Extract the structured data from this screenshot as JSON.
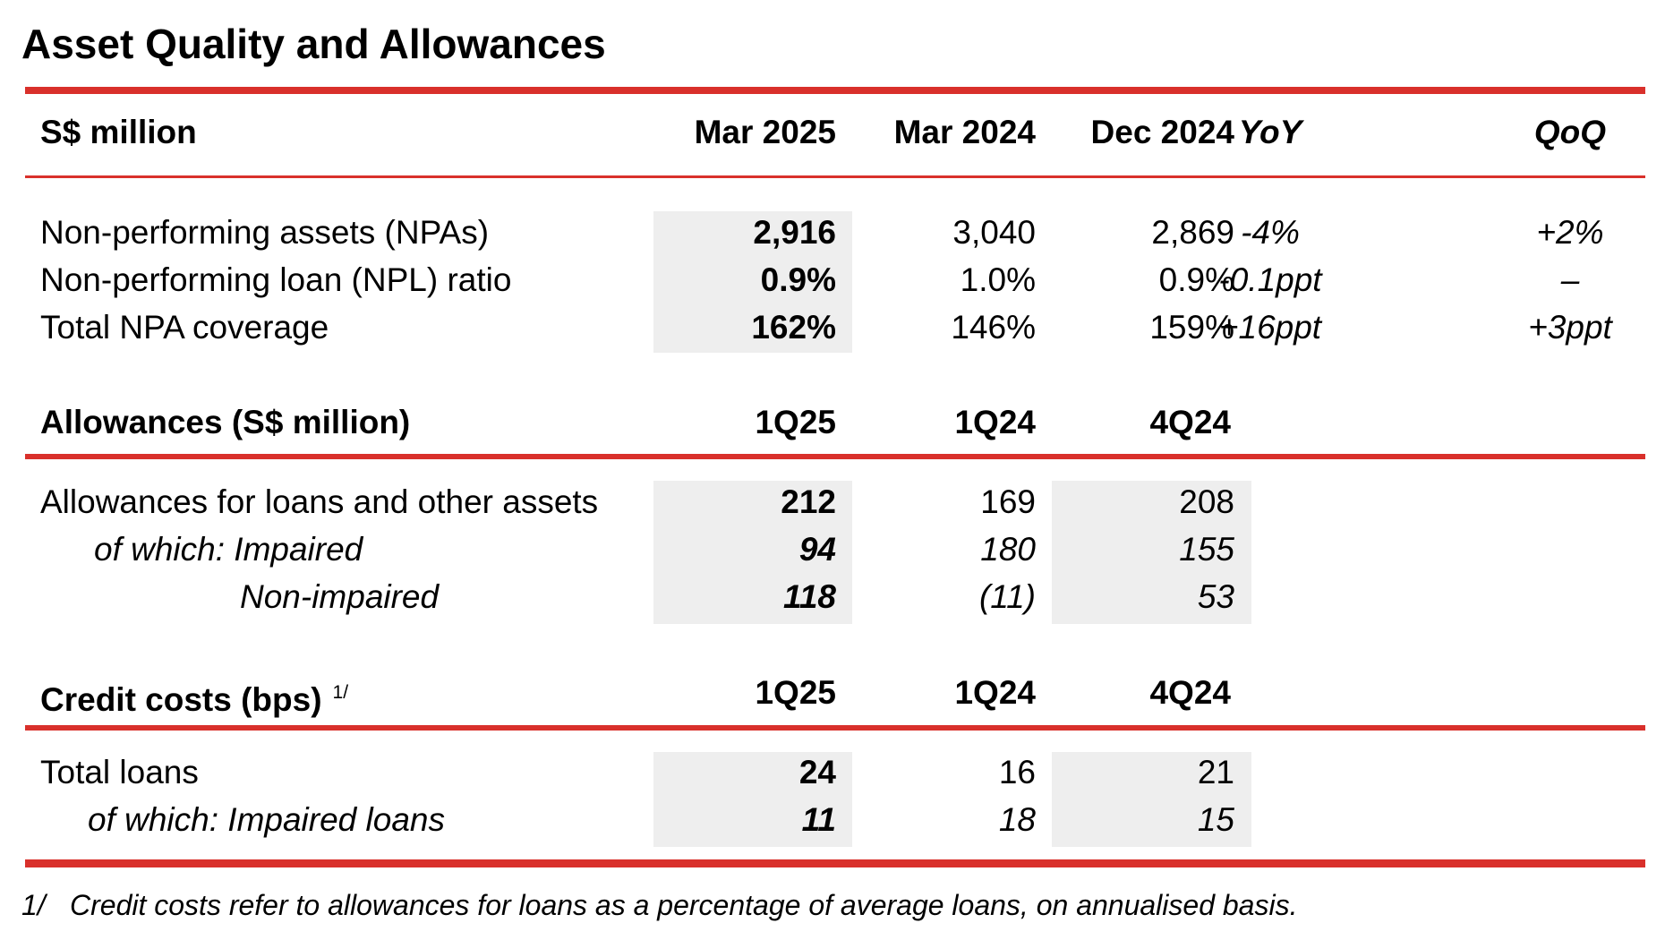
{
  "title": "Asset Quality and Allowances",
  "accent_color": "#d9302b",
  "shade_color": "#eeeeee",
  "npa_header": {
    "label": "S$ million",
    "cols": [
      "Mar 2025",
      "Mar 2024",
      "Dec 2024",
      "YoY",
      "QoQ"
    ]
  },
  "npa_rows": [
    {
      "label": "Non-performing assets (NPAs)",
      "mar2025": "2,916",
      "mar2024": "3,040",
      "dec2024": "2,869",
      "yoy": "-4%",
      "qoq": "+2%"
    },
    {
      "label": "Non-performing loan (NPL) ratio",
      "mar2025": "0.9%",
      "mar2024": "1.0%",
      "dec2024": "0.9%",
      "yoy": "-0.1ppt",
      "qoq": "–"
    },
    {
      "label": "Total NPA coverage",
      "mar2025": "162%",
      "mar2024": "146%",
      "dec2024": "159%",
      "yoy": "+16ppt",
      "qoq": "+3ppt"
    }
  ],
  "allow_header": {
    "label": "Allowances (S$ million)",
    "cols": [
      "1Q25",
      "1Q24",
      "4Q24"
    ]
  },
  "allow_rows": [
    {
      "label": "Allowances for loans and other assets",
      "q125": "212",
      "q124": "169",
      "q424": "208"
    },
    {
      "label": "of which: Impaired",
      "q125": "94",
      "q124": "180",
      "q424": "155"
    },
    {
      "label": "Non-impaired",
      "q125": "118",
      "q124": "(11)",
      "q424": "53"
    }
  ],
  "credit_header": {
    "label": "Credit costs (bps)",
    "footnote_ref": "1/",
    "cols": [
      "1Q25",
      "1Q24",
      "4Q24"
    ]
  },
  "credit_rows": [
    {
      "label": "Total loans",
      "q125": "24",
      "q124": "16",
      "q424": "21"
    },
    {
      "label": "of which: Impaired loans",
      "q125": "11",
      "q124": "18",
      "q424": "15"
    }
  ],
  "footnote": {
    "number": "1/",
    "text": "Credit costs refer to allowances for loans as a percentage of average loans, on annualised basis."
  }
}
